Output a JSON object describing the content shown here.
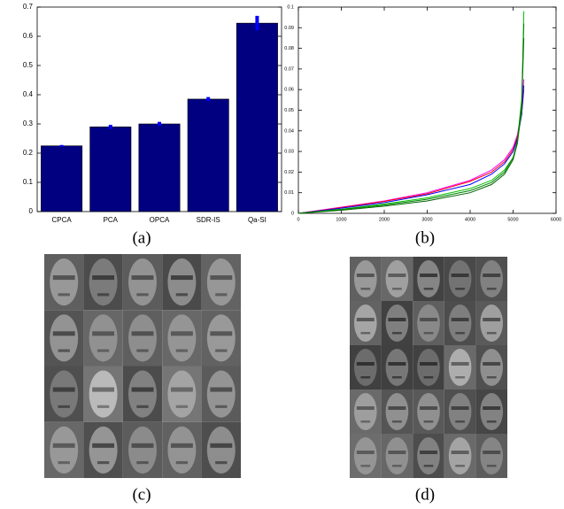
{
  "chart_data": [
    {
      "type": "bar",
      "categories": [
        "CPCA",
        "PCA",
        "OPCA",
        "SDR-IS",
        "Qa-SI"
      ],
      "values": [
        0.225,
        0.29,
        0.3,
        0.385,
        0.645
      ],
      "errors": [
        0.003,
        0.007,
        0.007,
        0.007,
        0.025
      ],
      "color": "#000080",
      "error_color": "#0000ff",
      "ylim": [
        0,
        0.7
      ],
      "yticks": [
        0,
        0.1,
        0.2,
        0.3,
        0.4,
        0.5,
        0.6,
        0.7
      ]
    },
    {
      "type": "line",
      "x": [
        0,
        1000,
        2000,
        3000,
        4000,
        4500,
        4800,
        5000,
        5100,
        5200,
        5250
      ],
      "series": [
        {
          "color": "#ff00ff",
          "values": [
            0,
            0.003,
            0.006,
            0.01,
            0.016,
            0.021,
            0.026,
            0.032,
            0.038,
            0.05,
            0.065
          ]
        },
        {
          "color": "#ff0000",
          "values": [
            0,
            0.0028,
            0.0058,
            0.0095,
            0.0155,
            0.02,
            0.025,
            0.031,
            0.037,
            0.048,
            0.06
          ]
        },
        {
          "color": "#0000ff",
          "values": [
            0,
            0.0025,
            0.0052,
            0.009,
            0.014,
            0.019,
            0.024,
            0.03,
            0.036,
            0.048,
            0.062
          ]
        },
        {
          "color": "#00c000",
          "values": [
            0,
            0.002,
            0.0045,
            0.0075,
            0.012,
            0.016,
            0.021,
            0.027,
            0.034,
            0.05,
            0.098
          ]
        },
        {
          "color": "#006400",
          "values": [
            0,
            0.0015,
            0.0035,
            0.006,
            0.01,
            0.014,
            0.019,
            0.026,
            0.034,
            0.052,
            0.085
          ]
        },
        {
          "color": "#008000",
          "values": [
            0,
            0.0018,
            0.004,
            0.0068,
            0.011,
            0.015,
            0.02,
            0.027,
            0.035,
            0.055,
            0.092
          ]
        }
      ],
      "xlim": [
        0,
        6000
      ],
      "xticks": [
        0,
        1000,
        2000,
        3000,
        4000,
        5000,
        6000
      ],
      "ylim": [
        0,
        0.1
      ],
      "yticks": [
        0,
        0.01,
        0.02,
        0.03,
        0.04,
        0.05,
        0.06,
        0.07,
        0.08,
        0.09,
        0.1
      ]
    }
  ],
  "captions": [
    "(a)",
    "(b)",
    "(c)",
    "(d)"
  ]
}
